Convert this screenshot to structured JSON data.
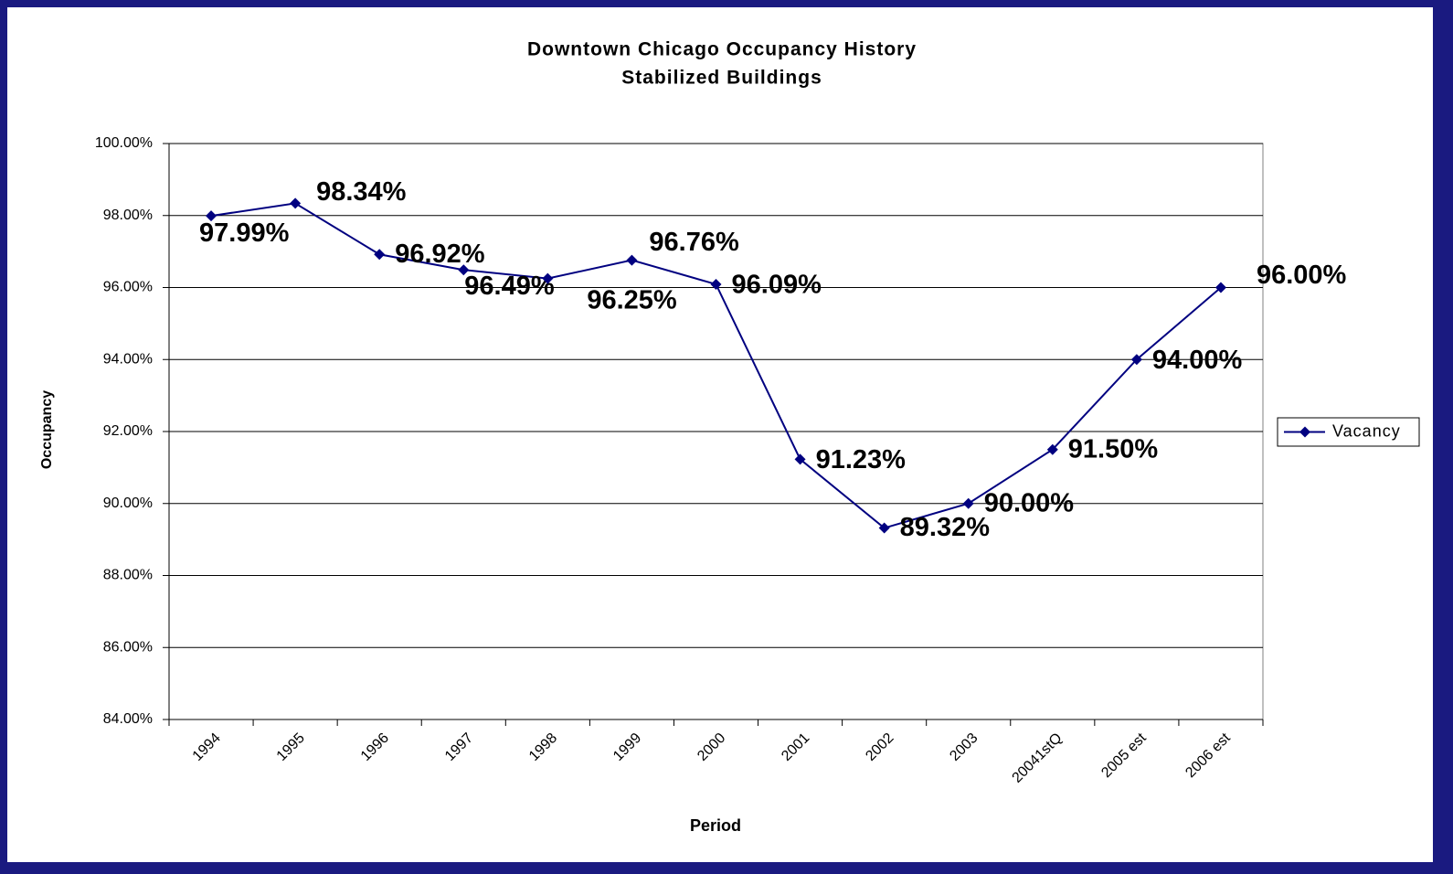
{
  "chart_data": {
    "type": "line",
    "title": "Downtown Chicago Occupancy History",
    "subtitle": "Stabilized Buildings",
    "x_label": "Period",
    "y_label": "Occupancy",
    "categories": [
      "1994",
      "1995",
      "1996",
      "1997",
      "1998",
      "1999",
      "2000",
      "2001",
      "2002",
      "2003",
      "20041stQ",
      "2005 est",
      "2006 est"
    ],
    "series": [
      {
        "name": "Vacancy",
        "color": "#000080",
        "values": [
          97.99,
          98.34,
          96.92,
          96.49,
          96.25,
          96.76,
          96.09,
          91.23,
          89.32,
          90.0,
          91.5,
          94.0,
          96.0
        ],
        "value_labels": [
          "97.99%",
          "98.34%",
          "96.92%",
          "96.49%",
          "96.25%",
          "96.76%",
          "96.09%",
          "91.23%",
          "89.32%",
          "90.00%",
          "91.50%",
          "94.00%",
          "96.00%"
        ]
      }
    ],
    "ylim": [
      84,
      100
    ],
    "yticks": [
      {
        "value": 84,
        "label": "84.00%"
      },
      {
        "value": 86,
        "label": "86.00%"
      },
      {
        "value": 88,
        "label": "88.00%"
      },
      {
        "value": 90,
        "label": "90.00%"
      },
      {
        "value": 92,
        "label": "92.00%"
      },
      {
        "value": 94,
        "label": "94.00%"
      },
      {
        "value": 96,
        "label": "96.00%"
      },
      {
        "value": 98,
        "label": "98.00%"
      },
      {
        "value": 100,
        "label": "100.00%"
      }
    ],
    "grid": true,
    "legend": "right"
  }
}
